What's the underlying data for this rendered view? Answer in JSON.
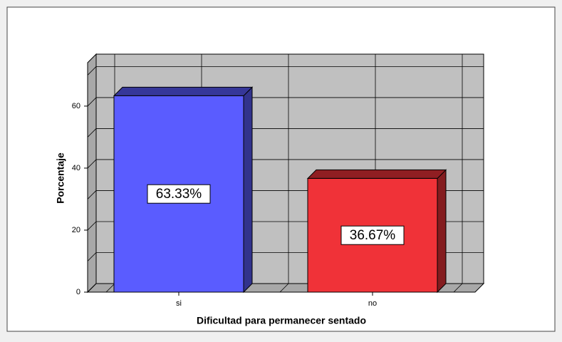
{
  "chart_data": {
    "type": "bar3d",
    "x_label": "Dificultad para permanecer sentado",
    "y_label": "Porcentaje",
    "categories": [
      "si",
      "no"
    ],
    "values": [
      63.33,
      36.67
    ],
    "value_labels": [
      "63.33%",
      "36.67%"
    ],
    "colors": [
      "#5a5cff",
      "#f03238"
    ],
    "ylim": [
      0,
      74
    ],
    "yticks": [
      0,
      20,
      40,
      60
    ],
    "grid": true
  }
}
